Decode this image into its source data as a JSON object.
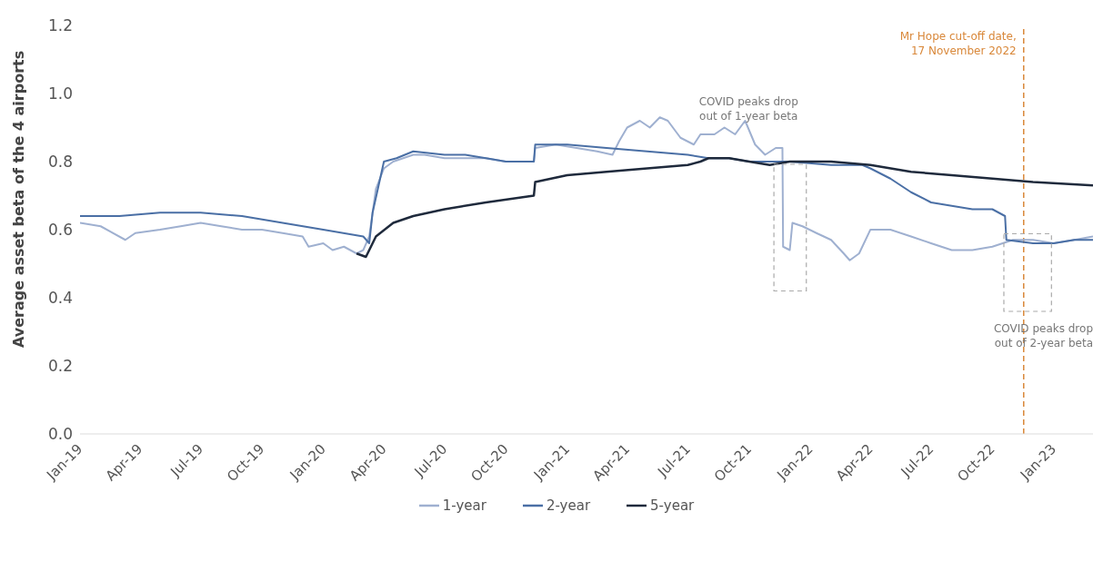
{
  "chart_data": {
    "type": "line",
    "ylabel": "Average asset beta of the 4 airports",
    "xlim": [
      "2019-01-01",
      "2023-03-01"
    ],
    "xticks": [
      {
        "value": "2019-01-01",
        "label": "Jan-19"
      },
      {
        "value": "2019-04-01",
        "label": "Apr-19"
      },
      {
        "value": "2019-07-01",
        "label": "Jul-19"
      },
      {
        "value": "2019-10-01",
        "label": "Oct-19"
      },
      {
        "value": "2020-01-01",
        "label": "Jan-20"
      },
      {
        "value": "2020-04-01",
        "label": "Apr-20"
      },
      {
        "value": "2020-07-01",
        "label": "Jul-20"
      },
      {
        "value": "2020-10-01",
        "label": "Oct-20"
      },
      {
        "value": "2021-01-01",
        "label": "Jan-21"
      },
      {
        "value": "2021-04-01",
        "label": "Apr-21"
      },
      {
        "value": "2021-07-01",
        "label": "Jul-21"
      },
      {
        "value": "2021-10-01",
        "label": "Oct-21"
      },
      {
        "value": "2022-01-01",
        "label": "Jan-22"
      },
      {
        "value": "2022-04-01",
        "label": "Apr-22"
      },
      {
        "value": "2022-07-01",
        "label": "Jul-22"
      },
      {
        "value": "2022-10-01",
        "label": "Oct-22"
      },
      {
        "value": "2023-01-01",
        "label": "Jan-23"
      }
    ],
    "ylim": [
      0,
      1.2
    ],
    "yticks": [
      {
        "value": 0,
        "label": "0.0"
      },
      0.2,
      0.4,
      0.6,
      0.8,
      {
        "value": 1,
        "label": "1.0"
      },
      1.2
    ],
    "legend": "bottom",
    "marker": "none",
    "line_style": "solid",
    "series": [
      {
        "name": "1-year",
        "color": "#9fb0d0",
        "x": [
          "2019-01-01",
          "2019-02-01",
          "2019-03-10",
          "2019-03-25",
          "2019-05-01",
          "2019-06-01",
          "2019-07-01",
          "2019-08-01",
          "2019-09-01",
          "2019-10-01",
          "2019-11-01",
          "2019-12-01",
          "2019-12-10",
          "2020-01-01",
          "2020-01-15",
          "2020-02-01",
          "2020-02-20",
          "2020-03-01",
          "2020-03-10",
          "2020-03-20",
          "2020-04-01",
          "2020-04-15",
          "2020-05-15",
          "2020-06-01",
          "2020-07-01",
          "2020-08-01",
          "2020-09-01",
          "2020-10-01",
          "2020-11-12",
          "2020-11-14",
          "2020-12-15",
          "2021-01-15",
          "2021-02-15",
          "2021-03-10",
          "2021-03-20",
          "2021-04-01",
          "2021-04-20",
          "2021-05-05",
          "2021-05-20",
          "2021-06-01",
          "2021-06-20",
          "2021-07-10",
          "2021-07-20",
          "2021-08-10",
          "2021-08-25",
          "2021-09-10",
          "2021-09-25",
          "2021-10-10",
          "2021-10-25",
          "2021-11-10",
          "2021-11-20",
          "2021-11-21",
          "2021-12-01",
          "2021-12-05",
          "2021-12-20",
          "2022-01-10",
          "2022-02-01",
          "2022-02-20",
          "2022-03-01",
          "2022-03-15",
          "2022-04-01",
          "2022-05-01",
          "2022-06-01",
          "2022-07-01",
          "2022-08-01",
          "2022-09-01",
          "2022-10-01",
          "2022-11-01",
          "2022-12-01",
          "2023-01-01",
          "2023-02-01",
          "2023-03-01"
        ],
        "values": [
          0.62,
          0.61,
          0.57,
          0.59,
          0.6,
          0.61,
          0.62,
          0.61,
          0.6,
          0.6,
          0.59,
          0.58,
          0.55,
          0.56,
          0.54,
          0.55,
          0.53,
          0.54,
          0.58,
          0.72,
          0.78,
          0.8,
          0.82,
          0.82,
          0.81,
          0.81,
          0.81,
          0.8,
          0.8,
          0.84,
          0.85,
          0.84,
          0.83,
          0.82,
          0.86,
          0.9,
          0.92,
          0.9,
          0.93,
          0.92,
          0.87,
          0.85,
          0.88,
          0.88,
          0.9,
          0.88,
          0.92,
          0.85,
          0.82,
          0.84,
          0.84,
          0.55,
          0.54,
          0.62,
          0.61,
          0.59,
          0.57,
          0.53,
          0.51,
          0.53,
          0.6,
          0.6,
          0.58,
          0.56,
          0.54,
          0.54,
          0.55,
          0.57,
          0.57,
          0.56,
          0.57,
          0.58
        ]
      },
      {
        "name": "2-year",
        "color": "#4a6fa5",
        "x": [
          "2019-01-01",
          "2019-03-01",
          "2019-05-01",
          "2019-07-01",
          "2019-09-01",
          "2019-11-01",
          "2020-01-01",
          "2020-03-01",
          "2020-03-10",
          "2020-03-15",
          "2020-04-01",
          "2020-04-20",
          "2020-05-15",
          "2020-07-01",
          "2020-08-01",
          "2020-09-01",
          "2020-10-01",
          "2020-11-12",
          "2020-11-14",
          "2021-01-01",
          "2021-03-01",
          "2021-05-01",
          "2021-07-01",
          "2021-08-01",
          "2021-09-01",
          "2021-10-01",
          "2021-11-01",
          "2021-12-01",
          "2022-02-01",
          "2022-03-20",
          "2022-04-01",
          "2022-05-01",
          "2022-06-01",
          "2022-07-01",
          "2022-08-01",
          "2022-09-01",
          "2022-10-01",
          "2022-10-20",
          "2022-10-22",
          "2022-12-01",
          "2023-01-01",
          "2023-02-01",
          "2023-03-01"
        ],
        "values": [
          0.64,
          0.64,
          0.65,
          0.65,
          0.64,
          0.62,
          0.6,
          0.58,
          0.56,
          0.65,
          0.8,
          0.81,
          0.83,
          0.82,
          0.82,
          0.81,
          0.8,
          0.8,
          0.85,
          0.85,
          0.84,
          0.83,
          0.82,
          0.81,
          0.81,
          0.8,
          0.8,
          0.8,
          0.79,
          0.79,
          0.78,
          0.75,
          0.71,
          0.68,
          0.67,
          0.66,
          0.66,
          0.64,
          0.57,
          0.56,
          0.56,
          0.57,
          0.57
        ]
      },
      {
        "name": "5-year",
        "color": "#1f2a3c",
        "x": [
          "2020-02-20",
          "2020-03-05",
          "2020-03-20",
          "2020-04-15",
          "2020-05-15",
          "2020-07-01",
          "2020-09-01",
          "2020-11-12",
          "2020-11-14",
          "2021-01-01",
          "2021-03-01",
          "2021-05-01",
          "2021-07-01",
          "2021-07-20",
          "2021-08-01",
          "2021-09-01",
          "2021-10-01",
          "2021-11-01",
          "2021-12-01",
          "2022-02-01",
          "2022-04-01",
          "2022-06-01",
          "2022-08-01",
          "2022-10-01",
          "2022-12-01",
          "2023-03-01"
        ],
        "values": [
          0.53,
          0.52,
          0.58,
          0.62,
          0.64,
          0.66,
          0.68,
          0.7,
          0.74,
          0.76,
          0.77,
          0.78,
          0.79,
          0.8,
          0.81,
          0.81,
          0.8,
          0.79,
          0.8,
          0.8,
          0.79,
          0.77,
          0.76,
          0.75,
          0.74,
          0.73
        ]
      }
    ],
    "ref_lines": [
      {
        "axis": "x",
        "value": "2022-11-17",
        "label": "Mr Hope cut-off date,\n17 November 2022",
        "color": "#d9883a",
        "line_style": "dashed"
      }
    ],
    "annotations": [
      "COVID peaks drop\nout of 1-year beta",
      "COVID peaks drop\nout of 2-year beta"
    ]
  }
}
